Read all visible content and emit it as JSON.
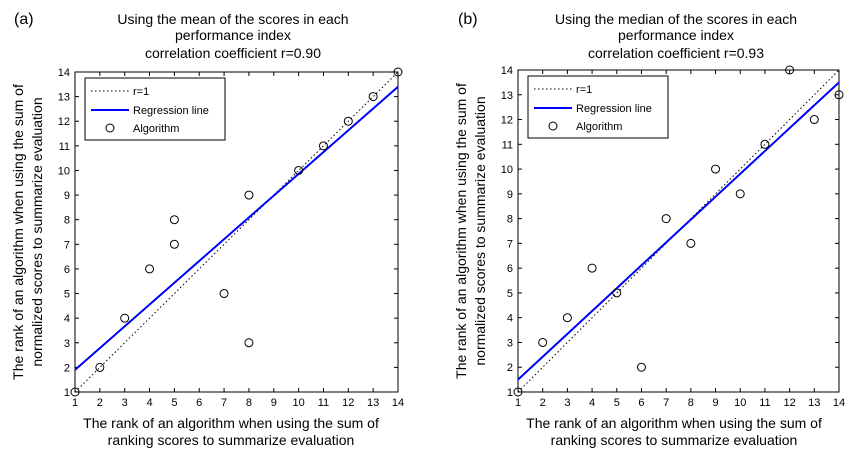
{
  "chart_data": [
    {
      "panel_label": "(a)",
      "type": "scatter",
      "title_lines": [
        "Using the mean of the scores in each",
        "performance index",
        "correlation coefficient r=0.90"
      ],
      "xlabel_lines": [
        "The rank of an algorithm when using the sum of",
        "ranking scores to summarize evaluation"
      ],
      "ylabel_lines": [
        "The rank of an algorithm when using the sum of",
        "normalized scores to summarize evaluation"
      ],
      "xlim": [
        1,
        14
      ],
      "ylim": [
        1,
        14
      ],
      "xticks": [
        1,
        2,
        3,
        4,
        5,
        6,
        7,
        8,
        9,
        10,
        11,
        12,
        13,
        14
      ],
      "yticks": [
        1,
        2,
        3,
        4,
        5,
        6,
        7,
        8,
        9,
        10,
        11,
        12,
        13,
        14
      ],
      "grid": false,
      "legend_position": "top-left",
      "legend": [
        "r=1",
        "Regression line",
        "Algorithm"
      ],
      "reference_line": {
        "name": "r=1",
        "style": "dotted",
        "color": "#000000",
        "points": [
          [
            1,
            1
          ],
          [
            14,
            14
          ]
        ]
      },
      "regression_line": {
        "name": "Regression line",
        "color": "#0000ff",
        "points": [
          [
            1,
            1.9
          ],
          [
            14,
            13.4
          ]
        ]
      },
      "points": {
        "name": "Algorithm",
        "x": [
          1,
          2,
          3,
          4,
          5,
          5,
          7,
          8,
          8,
          10,
          11,
          12,
          13,
          14
        ],
        "y": [
          1,
          2,
          4,
          6,
          8,
          7,
          5,
          9,
          3,
          10,
          11,
          12,
          13,
          14
        ]
      }
    },
    {
      "panel_label": "(b)",
      "type": "scatter",
      "title_lines": [
        "Using the median of the scores in each",
        "performance index",
        "correlation coefficient r=0.93"
      ],
      "xlabel_lines": [
        "The rank of an algorithm when using the sum of",
        "ranking scores to summarize evaluation"
      ],
      "ylabel_lines": [
        "The rank of an algorithm when using the sum of",
        "normalized scores to summarize evaluation"
      ],
      "xlim": [
        1,
        14
      ],
      "ylim": [
        1,
        14
      ],
      "xticks": [
        1,
        2,
        3,
        4,
        5,
        6,
        7,
        8,
        9,
        10,
        11,
        12,
        13,
        14
      ],
      "yticks": [
        1,
        2,
        3,
        4,
        5,
        6,
        7,
        8,
        9,
        10,
        11,
        12,
        13,
        14
      ],
      "grid": false,
      "legend_position": "top-left",
      "legend": [
        "r=1",
        "Regression line",
        "Algorithm"
      ],
      "reference_line": {
        "name": "r=1",
        "style": "dotted",
        "color": "#000000",
        "points": [
          [
            1,
            1
          ],
          [
            14,
            14
          ]
        ]
      },
      "regression_line": {
        "name": "Regression line",
        "color": "#0000ff",
        "points": [
          [
            1,
            1.5
          ],
          [
            14,
            13.5
          ]
        ]
      },
      "points": {
        "name": "Algorithm",
        "x": [
          1,
          2,
          3,
          4,
          5,
          6,
          7,
          8,
          9,
          10,
          11,
          12,
          13,
          14
        ],
        "y": [
          1,
          3,
          4,
          6,
          5,
          2,
          8,
          7,
          10,
          9,
          11,
          14,
          12,
          13
        ]
      }
    }
  ]
}
